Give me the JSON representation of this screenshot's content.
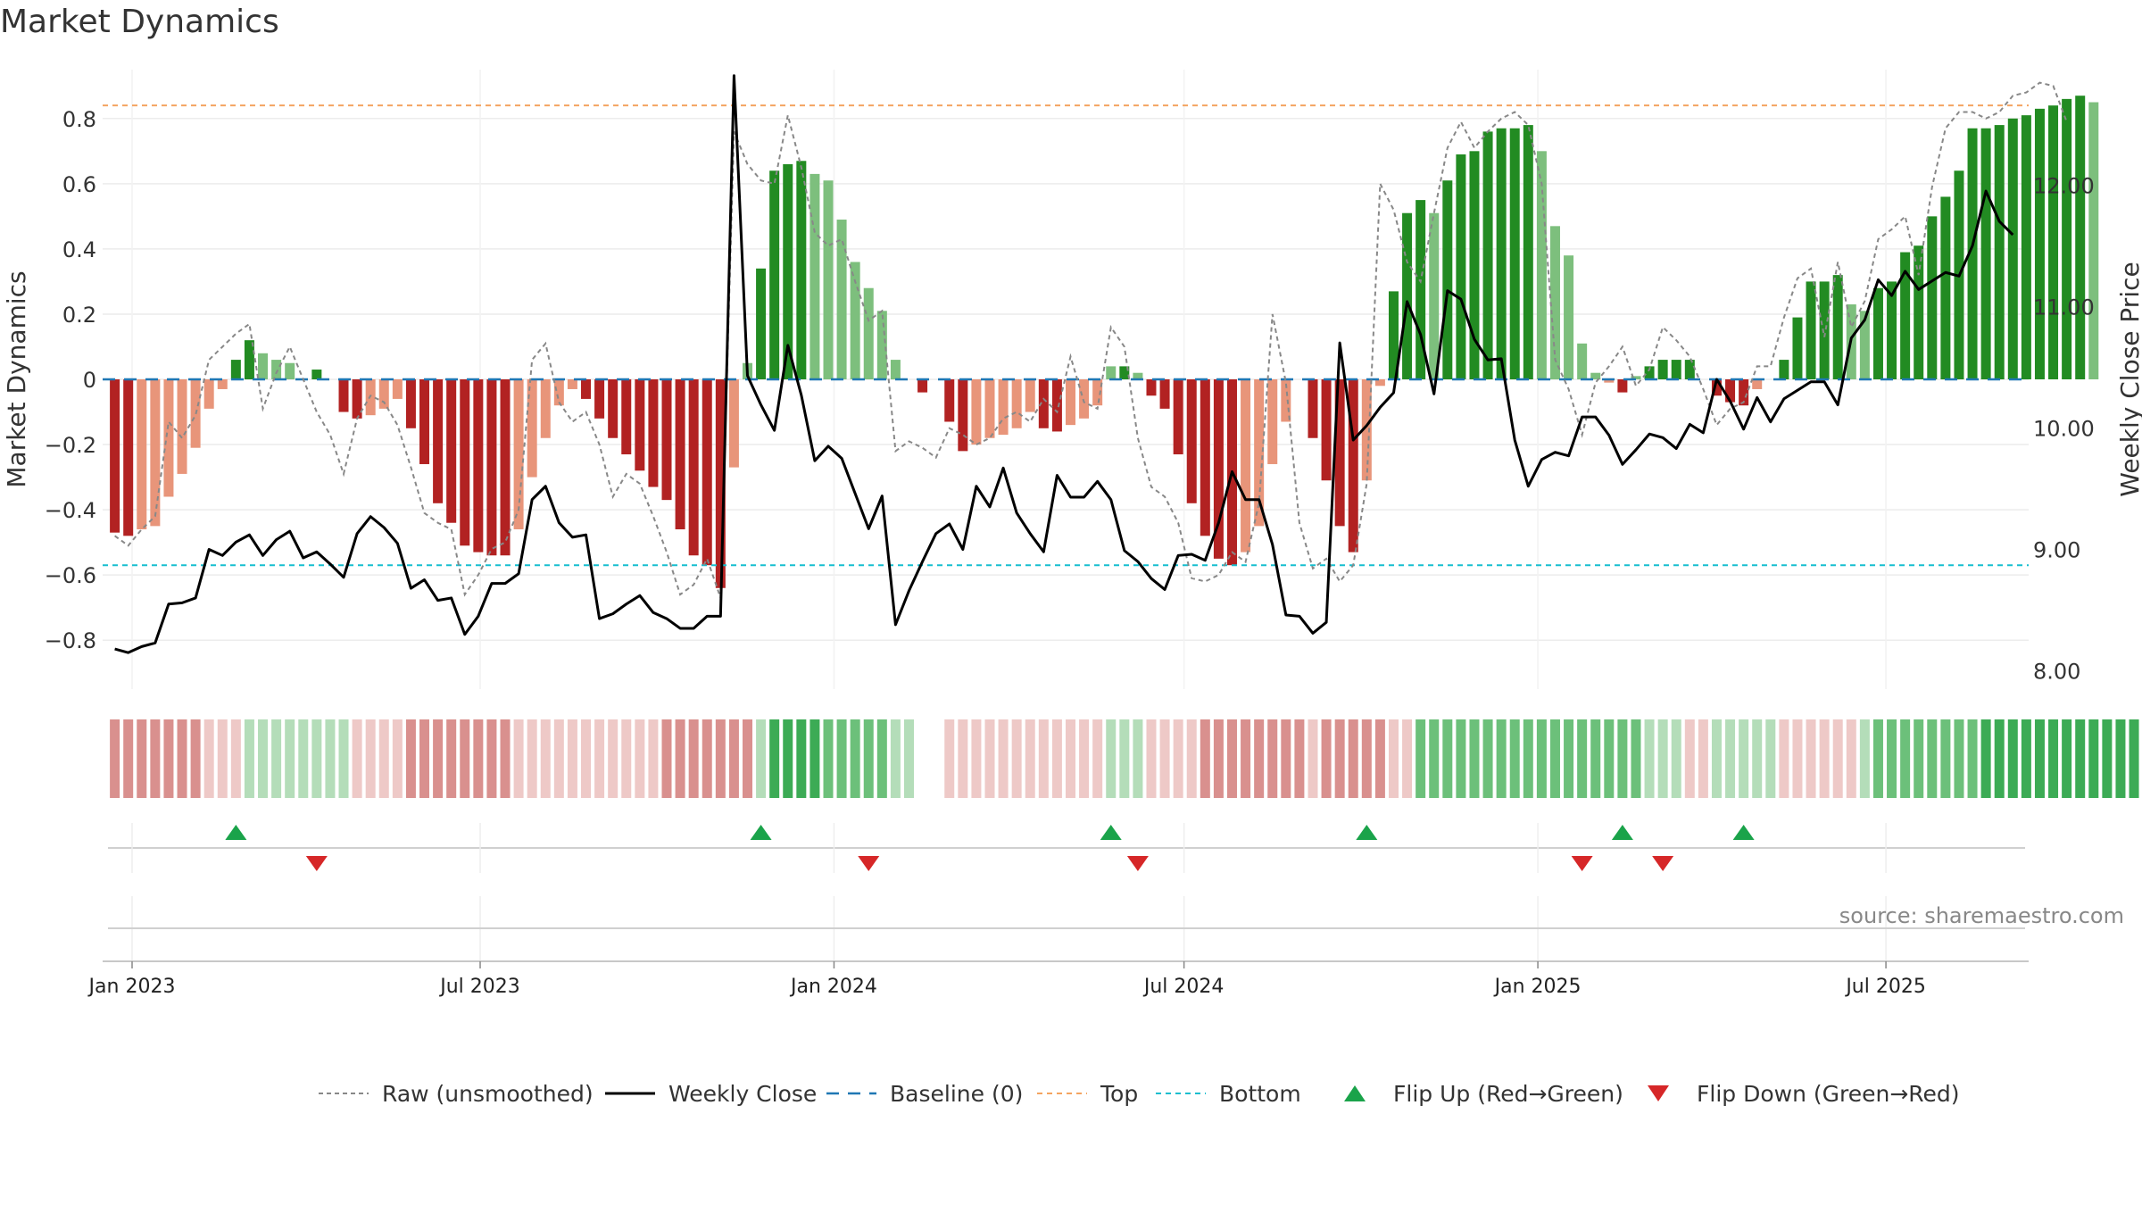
{
  "title": "Market Dynamics",
  "source": "source: sharemaestro.com",
  "colors": {
    "strong_green": "#228b22",
    "light_green": "#7dbf7d",
    "strong_red": "#b22222",
    "light_red": "#e8957a",
    "raw": "#888888",
    "close": "#000000",
    "baseline": "#1f77b4",
    "top": "#f4a460",
    "bottom": "#17becf",
    "flip_up": "#1aa34a",
    "flip_down": "#d62728"
  },
  "chart_data": {
    "type": "bar",
    "title": "Market Dynamics",
    "ylabel": "Market Dynamics",
    "y2label": "Weekly Close Price",
    "ylim": [
      -0.95,
      0.95
    ],
    "y2lim": [
      7.85,
      12.95
    ],
    "yticks": [
      "0.8",
      "0.6",
      "0.4",
      "0.2",
      "0",
      "−0.2",
      "−0.4",
      "−0.6",
      "−0.8"
    ],
    "y2ticks": [
      "12.00",
      "11.00",
      "10.00",
      "9.00",
      "8.00"
    ],
    "xticks": [
      "Jan 2023",
      "Jul 2023",
      "Jan 2024",
      "Jul 2024",
      "Jan 2025",
      "Jul 2025"
    ],
    "x_start": "2022-12-23",
    "top_line": 0.84,
    "bottom_line": -0.57,
    "baseline": 0,
    "grid": true,
    "legend_position": "bottom",
    "series": [
      {
        "name": "Market Dynamics",
        "values": [
          -0.47,
          -0.48,
          -0.46,
          -0.45,
          -0.36,
          -0.29,
          -0.21,
          -0.09,
          -0.03,
          0.06,
          0.12,
          0.08,
          0.06,
          0.05,
          0.0,
          0.03,
          -0.0,
          -0.1,
          -0.12,
          -0.11,
          -0.09,
          -0.06,
          -0.15,
          -0.26,
          -0.38,
          -0.44,
          -0.51,
          -0.53,
          -0.54,
          -0.54,
          -0.46,
          -0.3,
          -0.18,
          -0.08,
          -0.03,
          -0.06,
          -0.12,
          -0.18,
          -0.23,
          -0.28,
          -0.33,
          -0.37,
          -0.46,
          -0.54,
          -0.57,
          -0.64,
          -0.27,
          0.05,
          0.34,
          0.64,
          0.66,
          0.67,
          0.63,
          0.61,
          0.49,
          0.36,
          0.28,
          0.21,
          0.06,
          0.0,
          -0.04,
          0.0,
          -0.13,
          -0.22,
          -0.2,
          -0.18,
          -0.17,
          -0.15,
          -0.1,
          -0.15,
          -0.16,
          -0.14,
          -0.12,
          -0.08,
          0.04,
          0.04,
          0.02,
          -0.05,
          -0.09,
          -0.23,
          -0.38,
          -0.48,
          -0.55,
          -0.57,
          -0.53,
          -0.45,
          -0.26,
          -0.13,
          0.0,
          -0.18,
          -0.31,
          -0.45,
          -0.53,
          -0.31,
          -0.02,
          0.27,
          0.51,
          0.55,
          0.51,
          0.61,
          0.69,
          0.7,
          0.76,
          0.77,
          0.77,
          0.78,
          0.7,
          0.47,
          0.38,
          0.11,
          0.02,
          -0.01,
          -0.04,
          0.01,
          0.04,
          0.06,
          0.06,
          0.06,
          0.0,
          -0.05,
          -0.07,
          -0.08,
          -0.03,
          0.0,
          0.06,
          0.19,
          0.3,
          0.3,
          0.32,
          0.23,
          0.21,
          0.28,
          0.3,
          0.39,
          0.41,
          0.5,
          0.56,
          0.64,
          0.77,
          0.77,
          0.78,
          0.8,
          0.81,
          0.83,
          0.84,
          0.86,
          0.87,
          0.85
        ]
      },
      {
        "name": "Raw (unsmoothed)",
        "values": [
          -0.48,
          -0.51,
          -0.46,
          -0.42,
          -0.13,
          -0.18,
          -0.11,
          0.06,
          0.1,
          0.14,
          0.17,
          -0.09,
          0.02,
          0.1,
          0.0,
          -0.1,
          -0.17,
          -0.29,
          -0.12,
          -0.05,
          -0.07,
          -0.14,
          -0.27,
          -0.41,
          -0.44,
          -0.46,
          -0.66,
          -0.6,
          -0.52,
          -0.5,
          -0.4,
          0.06,
          0.11,
          -0.07,
          -0.13,
          -0.1,
          -0.2,
          -0.36,
          -0.29,
          -0.32,
          -0.42,
          -0.53,
          -0.66,
          -0.63,
          -0.55,
          -0.67,
          0.76,
          0.66,
          0.61,
          0.6,
          0.81,
          0.65,
          0.45,
          0.41,
          0.43,
          0.3,
          0.18,
          0.21,
          -0.22,
          -0.19,
          -0.21,
          -0.24,
          -0.15,
          -0.17,
          -0.2,
          -0.18,
          -0.12,
          -0.1,
          -0.13,
          -0.06,
          -0.1,
          0.07,
          -0.07,
          -0.09,
          0.16,
          0.1,
          -0.18,
          -0.33,
          -0.36,
          -0.44,
          -0.61,
          -0.62,
          -0.6,
          -0.53,
          -0.56,
          -0.38,
          0.2,
          -0.01,
          -0.44,
          -0.58,
          -0.55,
          -0.62,
          -0.57,
          -0.32,
          0.6,
          0.52,
          0.36,
          0.3,
          0.51,
          0.71,
          0.79,
          0.71,
          0.76,
          0.8,
          0.82,
          0.78,
          0.6,
          0.06,
          -0.03,
          -0.17,
          -0.01,
          0.04,
          0.1,
          -0.02,
          0.03,
          0.16,
          0.12,
          0.07,
          -0.03,
          -0.14,
          -0.09,
          -0.07,
          0.04,
          0.04,
          0.19,
          0.31,
          0.34,
          0.13,
          0.36,
          0.16,
          0.24,
          0.43,
          0.46,
          0.5,
          0.32,
          0.59,
          0.77,
          0.82,
          0.82,
          0.8,
          0.82,
          0.87,
          0.88,
          0.91,
          0.9,
          0.79
        ]
      },
      {
        "name": "Weekly Close",
        "values": [
          8.18,
          8.15,
          8.2,
          8.23,
          8.55,
          8.56,
          8.6,
          9.0,
          8.95,
          9.06,
          9.12,
          8.95,
          9.08,
          9.15,
          8.93,
          8.98,
          8.88,
          8.77,
          9.13,
          9.27,
          9.18,
          9.05,
          8.68,
          8.75,
          8.58,
          8.6,
          8.3,
          8.45,
          8.72,
          8.72,
          8.8,
          9.41,
          9.52,
          9.22,
          9.1,
          9.12,
          8.43,
          8.47,
          8.55,
          8.62,
          8.48,
          8.43,
          8.35,
          8.35,
          8.45,
          8.45,
          12.9,
          10.43,
          10.19,
          9.98,
          10.68,
          10.27,
          9.73,
          9.85,
          9.75,
          9.46,
          9.17,
          9.44,
          8.38,
          8.66,
          8.9,
          9.13,
          9.21,
          9.0,
          9.52,
          9.35,
          9.67,
          9.3,
          9.13,
          8.98,
          9.61,
          9.43,
          9.43,
          9.56,
          9.41,
          8.99,
          8.9,
          8.76,
          8.67,
          8.95,
          8.96,
          8.91,
          9.22,
          9.64,
          9.41,
          9.41,
          9.04,
          8.46,
          8.45,
          8.31,
          8.4,
          10.7,
          9.9,
          10.02,
          10.17,
          10.29,
          11.04,
          10.77,
          10.28,
          11.13,
          11.06,
          10.73,
          10.56,
          10.57,
          9.9,
          9.52,
          9.74,
          9.8,
          9.77,
          10.09,
          10.09,
          9.94,
          9.7,
          9.82,
          9.95,
          9.92,
          9.83,
          10.03,
          9.96,
          10.4,
          10.22,
          9.99,
          10.25,
          10.05,
          10.24,
          10.31,
          10.38,
          10.38,
          10.19,
          10.74,
          10.89,
          11.22,
          11.09,
          11.29,
          11.14,
          11.21,
          11.28,
          11.25,
          11.5,
          11.95,
          11.7,
          11.59
        ]
      }
    ],
    "regime_strip": [
      "R2",
      "R2",
      "R2",
      "R2",
      "R2",
      "R2",
      "R2",
      "R3",
      "R3",
      "R3",
      "G3",
      "G3",
      "G3",
      "G3",
      "G3",
      "G3",
      "G3",
      "G3",
      "R3",
      "R3",
      "R3",
      "R3",
      "R2",
      "R2",
      "R2",
      "R2",
      "R2",
      "R2",
      "R2",
      "R2",
      "R3",
      "R3",
      "R3",
      "R3",
      "R3",
      "R3",
      "R3",
      "R3",
      "R3",
      "R3",
      "R3",
      "R2",
      "R2",
      "R2",
      "R2",
      "R2",
      "R2",
      "R2",
      "G3",
      "G1",
      "G1",
      "G1",
      "G1",
      "G2",
      "G2",
      "G2",
      "G2",
      "G2",
      "G3",
      "G3",
      "GAP",
      "GAP",
      "R3",
      "R3",
      "R3",
      "R3",
      "R3",
      "R3",
      "R3",
      "R3",
      "R3",
      "R3",
      "R3",
      "R3",
      "G3",
      "G3",
      "G3",
      "R3",
      "R3",
      "R3",
      "R3",
      "R2",
      "R2",
      "R2",
      "R2",
      "R2",
      "R2",
      "R2",
      "R2",
      "R3",
      "R2",
      "R2",
      "R2",
      "R2",
      "R2",
      "R3",
      "R3",
      "G2",
      "G2",
      "G2",
      "G2",
      "G2",
      "G2",
      "G2",
      "G2",
      "G2",
      "G2",
      "G2",
      "G2",
      "G2",
      "G2",
      "G2",
      "G2",
      "G2",
      "G3",
      "G3",
      "G3",
      "R3",
      "R3",
      "G3",
      "G3",
      "G3",
      "G3",
      "G3",
      "R3",
      "R3",
      "R3",
      "R3",
      "R3",
      "R3",
      "G3",
      "G2",
      "G2",
      "G2",
      "G2",
      "G2",
      "G2",
      "G2",
      "G2",
      "G1",
      "G1",
      "G1",
      "G1",
      "G1",
      "G1",
      "G1",
      "G1",
      "G1",
      "G1",
      "G1",
      "G1"
    ],
    "flips_up": [
      "2023-02-24",
      "2023-11-24",
      "2024-05-24",
      "2024-10-04",
      "2025-02-14",
      "2025-04-18"
    ],
    "flips_down": [
      "2023-04-07",
      "2024-01-19",
      "2024-06-07",
      "2025-01-24",
      "2025-03-07"
    ],
    "legend": [
      "Raw (unsmoothed)",
      "Weekly Close",
      "Baseline (0)",
      "Top",
      "Bottom",
      "Flip Up (Red→Green)",
      "Flip Down (Green→Red)"
    ]
  }
}
